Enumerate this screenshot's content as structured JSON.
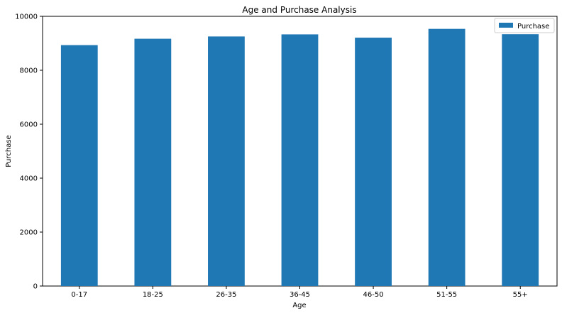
{
  "chart_data": {
    "type": "bar",
    "title": "Age and Purchase Analysis",
    "xlabel": "Age",
    "ylabel": "Purchase",
    "categories": [
      "0-17",
      "18-25",
      "26-35",
      "36-45",
      "46-50",
      "51-55",
      "55+"
    ],
    "series": [
      {
        "name": "Purchase",
        "values": [
          8933,
          9169,
          9253,
          9331,
          9209,
          9535,
          9337
        ],
        "color": "#1f77b4"
      }
    ],
    "ylim": [
      0,
      10000
    ],
    "yticks": [
      "0",
      "2000",
      "4000",
      "6000",
      "8000",
      "10000"
    ],
    "yticks_values": [
      0,
      2000,
      4000,
      6000,
      8000,
      10000
    ],
    "grid": false,
    "legend_position": "top-right"
  }
}
